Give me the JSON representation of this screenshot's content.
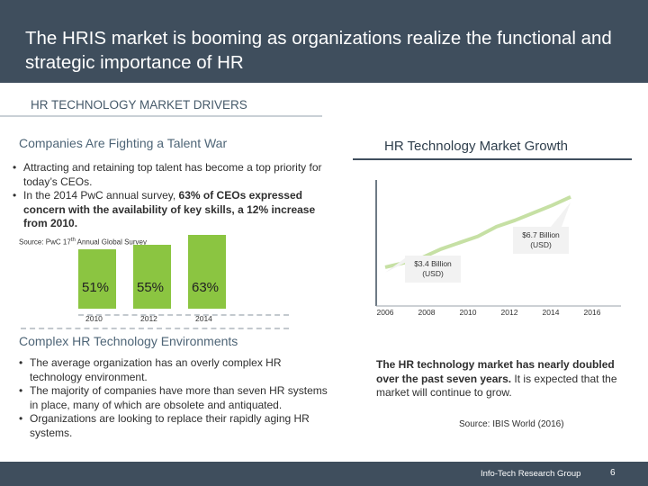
{
  "header": {
    "title": "The HRIS market is booming as organizations realize the functional and strategic importance of HR"
  },
  "section_tag": "HR TECHNOLOGY MARKET DRIVERS",
  "left_top": {
    "heading": "Companies Are Fighting a Talent War",
    "bullet1": "Attracting and retaining top talent has become a top priority for today’s CEOs.",
    "bullet2_pre": "In the 2014 PwC annual survey, ",
    "bullet2_bold": "63% of CEOs expressed concern with the availability of key skills, a 12% increase from 2010.",
    "source_pre": "Source: PwC 17",
    "source_sup": "th",
    "source_post": " Annual Global Survey"
  },
  "chart_data": [
    {
      "type": "bar",
      "categories": [
        "2010",
        "2012",
        "2014"
      ],
      "values": [
        51,
        55,
        63
      ],
      "value_labels": [
        "51%",
        "55%",
        "63%"
      ],
      "color": "#8bc541"
    },
    {
      "type": "line",
      "title": "HR Technology Market Growth",
      "x": [
        2006,
        2007,
        2008,
        2009,
        2010,
        2011,
        2012,
        2013,
        2014,
        2015,
        2016
      ],
      "values": [
        3.4,
        3.6,
        3.85,
        4.25,
        4.55,
        4.85,
        5.3,
        5.6,
        5.95,
        6.3,
        6.7
      ],
      "unit": "Billion (USD)",
      "xticks": [
        "2006",
        "2008",
        "2010",
        "2012",
        "2014",
        "2016"
      ],
      "annotations": [
        {
          "x": 2006,
          "y": 3.4,
          "label1": "$3.4 Billion",
          "label2": "(USD)"
        },
        {
          "x": 2016,
          "y": 6.7,
          "label1": "$6.7 Billion",
          "label2": "(USD)"
        }
      ],
      "line_color": "#c6e0a4"
    }
  ],
  "left_bottom": {
    "heading": "Complex HR Technology Environments",
    "bullet1": "The average organization has an overly complex HR technology environment.",
    "bullet2": "The majority of companies have more than seven HR systems in place, many of which are obsolete and antiquated.",
    "bullet3": "Organizations are looking to replace their rapidly aging HR systems."
  },
  "right_bottom": {
    "bold": "The HR technology market has nearly doubled over the past seven years.",
    "rest": " It is expected that the market will continue to grow.",
    "source": "Source: IBIS World (2016)"
  },
  "footer": {
    "org": "Info-Tech Research Group",
    "page": "6"
  }
}
